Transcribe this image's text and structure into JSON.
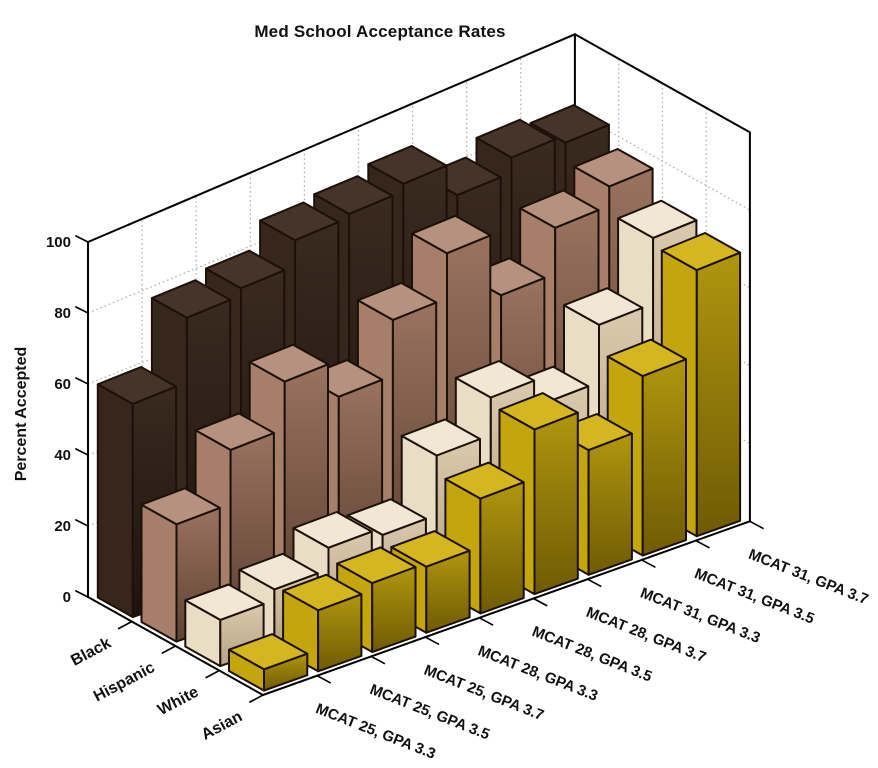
{
  "chart_data": {
    "type": "bar",
    "subtype": "bar3d",
    "title": "Med School Acceptance Rates",
    "ylabel": "Percent Accepted",
    "zlim": [
      0,
      100
    ],
    "zticks": [
      0,
      20,
      40,
      60,
      80,
      100
    ],
    "grid": "dotted-walls",
    "legend_position": "none",
    "row_axis_note": "race rows ordered back-left to front-right",
    "categories": [
      "MCAT 25, GPA 3.3",
      "MCAT 25, GPA 3.5",
      "MCAT 25, GPA 3.7",
      "MCAT 28, GPA 3.3",
      "MCAT 28, GPA 3.5",
      "MCAT 28, GPA 3.7",
      "MCAT 31, GPA 3.3",
      "MCAT 31, GPA 3.5",
      "MCAT 31, GPA 3.7"
    ],
    "series": [
      {
        "name": "Black",
        "values": [
          60,
          78,
          80,
          87,
          88,
          90,
          81,
          85,
          83
        ],
        "colors": {
          "top": "#46342a",
          "left": "#37261c",
          "rightLight": "#3a2a20",
          "rightDark": "#1e130c"
        }
      },
      {
        "name": "Hispanic",
        "values": [
          33,
          48,
          61,
          51,
          66,
          78,
          61,
          73,
          78
        ],
        "colors": {
          "top": "#b7917f",
          "left": "#a67e6a",
          "rightLight": "#9a7260",
          "rightDark": "#5e4233"
        }
      },
      {
        "name": "White",
        "values": [
          13,
          16,
          22,
          20,
          36,
          46,
          39,
          54,
          71
        ],
        "colors": {
          "top": "#f1e7d4",
          "left": "#e9ddc5",
          "rightLight": "#dbc9ad",
          "rightDark": "#b7a285"
        }
      },
      {
        "name": "Asian",
        "values": [
          6,
          17,
          19,
          18,
          31,
          44,
          33,
          47,
          69
        ],
        "colors": {
          "top": "#d3b620",
          "left": "#c3a50d",
          "rightLight": "#b0960e",
          "rightDark": "#6f5b05"
        }
      }
    ],
    "axis_color": "#000000",
    "bar_outline_color": "#1c1008",
    "gridline_color": "#a8a8a8",
    "text_color": "#111111"
  }
}
